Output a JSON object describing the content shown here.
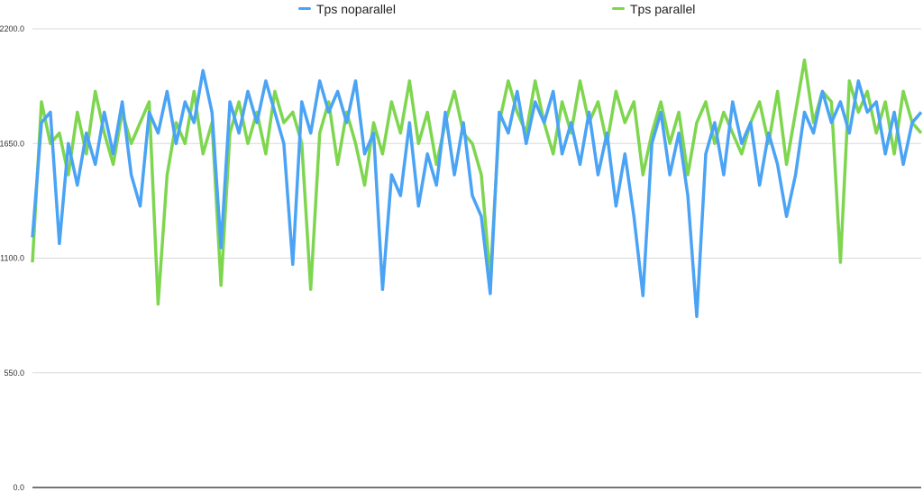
{
  "chart_data": {
    "type": "line",
    "title": "",
    "xlabel": "",
    "ylabel": "",
    "ylim": [
      0,
      2200
    ],
    "yticks": [
      "0.0",
      "550.0",
      "1100.0",
      "1650.0",
      "2200.0"
    ],
    "ytick_values": [
      0,
      550,
      1100,
      1650,
      2200
    ],
    "grid": true,
    "legend_position": "top",
    "series": [
      {
        "name": "Tps noparallel",
        "color": "#4aa3f5",
        "values": [
          1200,
          1750,
          1800,
          1170,
          1650,
          1450,
          1700,
          1550,
          1800,
          1600,
          1850,
          1500,
          1350,
          1800,
          1700,
          1900,
          1650,
          1850,
          1750,
          2000,
          1800,
          1150,
          1850,
          1700,
          1900,
          1750,
          1950,
          1800,
          1650,
          1070,
          1850,
          1700,
          1950,
          1800,
          1900,
          1750,
          1950,
          1600,
          1700,
          950,
          1500,
          1400,
          1750,
          1350,
          1600,
          1450,
          1800,
          1500,
          1750,
          1400,
          1300,
          930,
          1800,
          1700,
          1900,
          1650,
          1850,
          1750,
          1900,
          1600,
          1750,
          1550,
          1800,
          1500,
          1700,
          1350,
          1600,
          1300,
          920,
          1650,
          1800,
          1500,
          1700,
          1400,
          820,
          1600,
          1750,
          1500,
          1850,
          1650,
          1750,
          1450,
          1700,
          1550,
          1300,
          1500,
          1800,
          1700,
          1900,
          1750,
          1850,
          1700,
          1950,
          1800,
          1850,
          1600,
          1800,
          1550,
          1750,
          1800
        ]
      },
      {
        "name": "Tps parallel",
        "color": "#7ed64f",
        "values": [
          1080,
          1850,
          1650,
          1700,
          1500,
          1800,
          1600,
          1900,
          1700,
          1550,
          1800,
          1650,
          1750,
          1850,
          880,
          1500,
          1750,
          1650,
          1900,
          1600,
          1750,
          970,
          1700,
          1850,
          1650,
          1800,
          1600,
          1900,
          1750,
          1800,
          1650,
          950,
          1700,
          1850,
          1550,
          1800,
          1650,
          1450,
          1750,
          1600,
          1850,
          1700,
          1950,
          1650,
          1800,
          1550,
          1750,
          1900,
          1700,
          1650,
          1500,
          1000,
          1750,
          1950,
          1800,
          1700,
          1950,
          1750,
          1600,
          1850,
          1700,
          1950,
          1750,
          1850,
          1650,
          1900,
          1750,
          1850,
          1500,
          1700,
          1850,
          1650,
          1800,
          1500,
          1750,
          1850,
          1650,
          1800,
          1700,
          1600,
          1750,
          1850,
          1650,
          1900,
          1550,
          1800,
          2050,
          1750,
          1900,
          1850,
          1080,
          1950,
          1800,
          1900,
          1700,
          1850,
          1600,
          1900,
          1750,
          1700
        ]
      }
    ]
  }
}
